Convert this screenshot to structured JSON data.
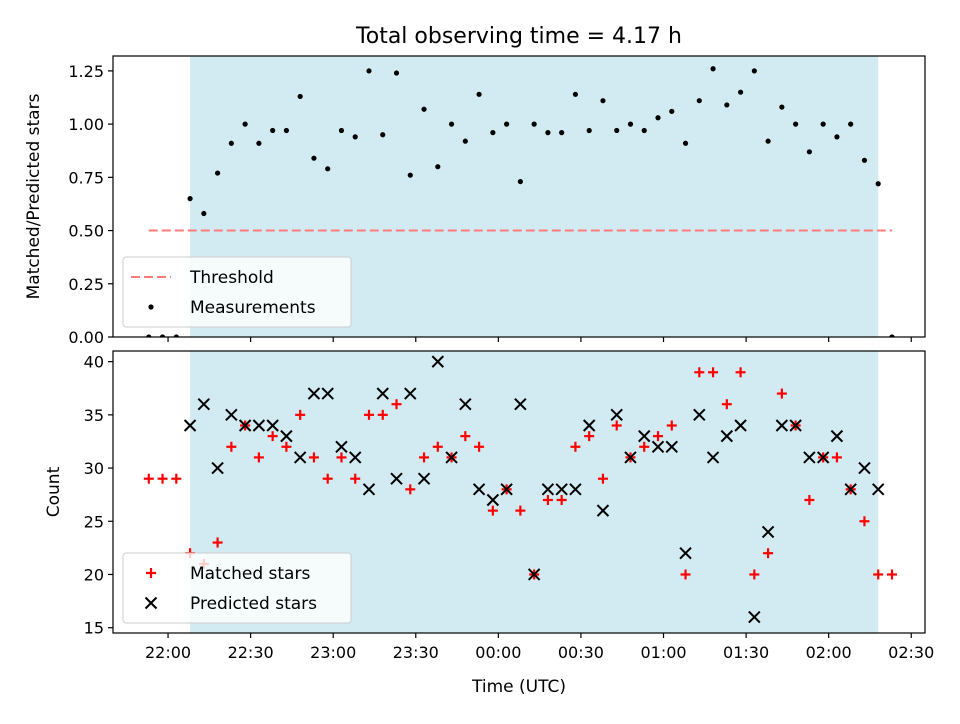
{
  "chart_data": {
    "title": "Total observing time = 4.17 h",
    "xlabel": "Time (UTC)",
    "x_tick_labels": [
      "22:00",
      "22:30",
      "23:00",
      "23:30",
      "00:00",
      "00:30",
      "01:00",
      "01:30",
      "02:00",
      "02:30"
    ],
    "x_tick_minutes": [
      0,
      30,
      60,
      90,
      120,
      150,
      180,
      210,
      240,
      270
    ],
    "x_axis_note": "x values are minutes after 22:00 UTC",
    "xlim_minutes": [
      -20,
      275
    ],
    "observing_window_minutes": [
      8,
      258
    ],
    "shade_color": "#add8e6",
    "panels": [
      {
        "type": "scatter",
        "ylabel": "Matched/Predicted stars",
        "ylim": [
          0,
          1.32
        ],
        "y_ticks": [
          0.0,
          0.25,
          0.5,
          0.75,
          1.0,
          1.25
        ],
        "y_tick_labels": [
          "0.00",
          "0.25",
          "0.50",
          "0.75",
          "1.00",
          "1.25"
        ],
        "legend_position": "lower-left",
        "threshold": {
          "name": "Threshold",
          "value": 0.5,
          "x_range": [
            -7,
            263
          ],
          "color": "#ff7a7a"
        },
        "series": [
          {
            "name": "Measurements",
            "marker": "dot",
            "color": "#000000",
            "points": [
              [
                -7,
                0.0
              ],
              [
                -2,
                0.0
              ],
              [
                3,
                0.0
              ],
              [
                8,
                0.65
              ],
              [
                13,
                0.58
              ],
              [
                18,
                0.77
              ],
              [
                23,
                0.91
              ],
              [
                28,
                1.0
              ],
              [
                33,
                0.91
              ],
              [
                38,
                0.97
              ],
              [
                43,
                0.97
              ],
              [
                48,
                1.13
              ],
              [
                53,
                0.84
              ],
              [
                58,
                0.79
              ],
              [
                63,
                0.97
              ],
              [
                68,
                0.94
              ],
              [
                73,
                1.25
              ],
              [
                78,
                0.95
              ],
              [
                83,
                1.24
              ],
              [
                88,
                0.76
              ],
              [
                93,
                1.07
              ],
              [
                98,
                0.8
              ],
              [
                103,
                1.0
              ],
              [
                108,
                0.92
              ],
              [
                113,
                1.14
              ],
              [
                118,
                0.96
              ],
              [
                123,
                1.0
              ],
              [
                128,
                0.73
              ],
              [
                133,
                1.0
              ],
              [
                138,
                0.96
              ],
              [
                143,
                0.96
              ],
              [
                148,
                1.14
              ],
              [
                153,
                0.97
              ],
              [
                158,
                1.11
              ],
              [
                163,
                0.97
              ],
              [
                168,
                1.0
              ],
              [
                173,
                0.97
              ],
              [
                178,
                1.03
              ],
              [
                183,
                1.06
              ],
              [
                188,
                0.91
              ],
              [
                193,
                1.11
              ],
              [
                198,
                1.26
              ],
              [
                203,
                1.09
              ],
              [
                208,
                1.15
              ],
              [
                213,
                1.25
              ],
              [
                218,
                0.92
              ],
              [
                223,
                1.08
              ],
              [
                228,
                1.0
              ],
              [
                233,
                0.87
              ],
              [
                238,
                1.0
              ],
              [
                243,
                0.94
              ],
              [
                248,
                1.0
              ],
              [
                253,
                0.83
              ],
              [
                258,
                0.72
              ],
              [
                263,
                0.0
              ]
            ]
          }
        ]
      },
      {
        "type": "scatter",
        "ylabel": "Count",
        "ylim": [
          14.5,
          41
        ],
        "y_ticks": [
          15,
          20,
          25,
          30,
          35,
          40
        ],
        "y_tick_labels": [
          "15",
          "20",
          "25",
          "30",
          "35",
          "40"
        ],
        "legend_position": "lower-left",
        "series": [
          {
            "name": "Matched stars",
            "marker": "plus",
            "color": "#ff0000",
            "points": [
              [
                -7,
                29
              ],
              [
                -2,
                29
              ],
              [
                3,
                29
              ],
              [
                8,
                22
              ],
              [
                13,
                21
              ],
              [
                18,
                23
              ],
              [
                23,
                32
              ],
              [
                28,
                34
              ],
              [
                33,
                31
              ],
              [
                38,
                33
              ],
              [
                43,
                32
              ],
              [
                48,
                35
              ],
              [
                53,
                31
              ],
              [
                58,
                29
              ],
              [
                63,
                31
              ],
              [
                68,
                29
              ],
              [
                73,
                35
              ],
              [
                78,
                35
              ],
              [
                83,
                36
              ],
              [
                88,
                28
              ],
              [
                93,
                31
              ],
              [
                98,
                32
              ],
              [
                103,
                31
              ],
              [
                108,
                33
              ],
              [
                113,
                32
              ],
              [
                118,
                26
              ],
              [
                123,
                28
              ],
              [
                128,
                26
              ],
              [
                133,
                20
              ],
              [
                138,
                27
              ],
              [
                143,
                27
              ],
              [
                148,
                32
              ],
              [
                153,
                33
              ],
              [
                158,
                29
              ],
              [
                163,
                34
              ],
              [
                168,
                31
              ],
              [
                173,
                32
              ],
              [
                178,
                33
              ],
              [
                183,
                34
              ],
              [
                188,
                20
              ],
              [
                193,
                39
              ],
              [
                198,
                39
              ],
              [
                203,
                36
              ],
              [
                208,
                39
              ],
              [
                213,
                20
              ],
              [
                218,
                22
              ],
              [
                223,
                37
              ],
              [
                228,
                34
              ],
              [
                233,
                27
              ],
              [
                238,
                31
              ],
              [
                243,
                31
              ],
              [
                248,
                28
              ],
              [
                253,
                25
              ],
              [
                258,
                20
              ],
              [
                263,
                20
              ]
            ]
          },
          {
            "name": "Predicted stars",
            "marker": "x",
            "color": "#000000",
            "points": [
              [
                8,
                34
              ],
              [
                13,
                36
              ],
              [
                18,
                30
              ],
              [
                23,
                35
              ],
              [
                28,
                34
              ],
              [
                33,
                34
              ],
              [
                38,
                34
              ],
              [
                43,
                33
              ],
              [
                48,
                31
              ],
              [
                53,
                37
              ],
              [
                58,
                37
              ],
              [
                63,
                32
              ],
              [
                68,
                31
              ],
              [
                73,
                28
              ],
              [
                78,
                37
              ],
              [
                83,
                29
              ],
              [
                88,
                37
              ],
              [
                93,
                29
              ],
              [
                98,
                40
              ],
              [
                103,
                31
              ],
              [
                108,
                36
              ],
              [
                113,
                28
              ],
              [
                118,
                27
              ],
              [
                123,
                28
              ],
              [
                128,
                36
              ],
              [
                133,
                20
              ],
              [
                138,
                28
              ],
              [
                143,
                28
              ],
              [
                148,
                28
              ],
              [
                153,
                34
              ],
              [
                158,
                26
              ],
              [
                163,
                35
              ],
              [
                168,
                31
              ],
              [
                173,
                33
              ],
              [
                178,
                32
              ],
              [
                183,
                32
              ],
              [
                188,
                22
              ],
              [
                193,
                35
              ],
              [
                198,
                31
              ],
              [
                203,
                33
              ],
              [
                208,
                34
              ],
              [
                213,
                16
              ],
              [
                218,
                24
              ],
              [
                223,
                34
              ],
              [
                228,
                34
              ],
              [
                233,
                31
              ],
              [
                238,
                31
              ],
              [
                243,
                33
              ],
              [
                248,
                28
              ],
              [
                253,
                30
              ],
              [
                258,
                28
              ]
            ]
          }
        ]
      }
    ]
  }
}
